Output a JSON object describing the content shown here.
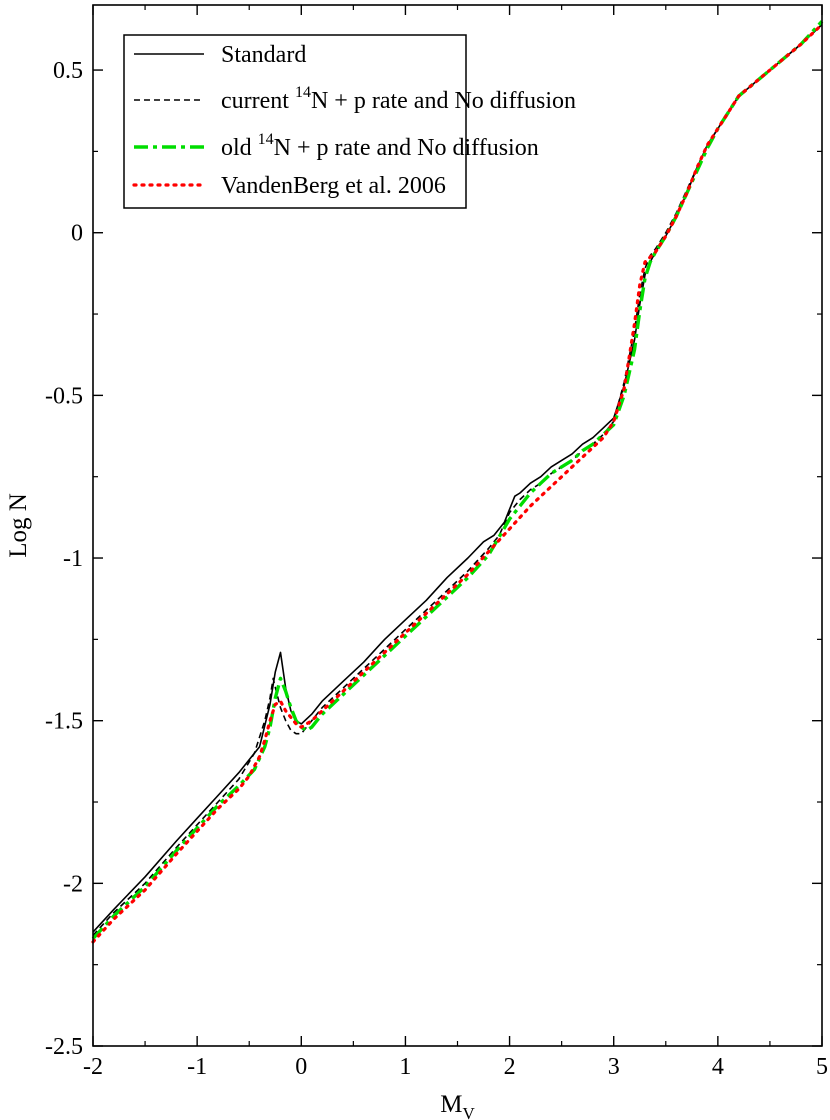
{
  "chart_data": {
    "type": "line",
    "xlabel": "M",
    "xlabel_sub": "V",
    "ylabel": "Log N",
    "xlim": [
      -2,
      5
    ],
    "ylim": [
      -2.5,
      0.7
    ],
    "xticks": [
      -2,
      -1,
      0,
      1,
      2,
      3,
      4,
      5
    ],
    "xtick_labels": [
      "-2",
      "-1",
      "0",
      "1",
      "2",
      "3",
      "4",
      "5"
    ],
    "yticks": [
      -2.5,
      -2,
      -1.5,
      -1,
      -0.5,
      0,
      0.5
    ],
    "ytick_labels": [
      "-2.5",
      "-2",
      "-1.5",
      "-1",
      "-0.5",
      "0",
      "0.5"
    ],
    "grid": false,
    "legend_position": "top-left",
    "series": [
      {
        "name": "Standard",
        "color": "#000000",
        "style": "solid",
        "x": [
          -2.0,
          -1.8,
          -1.5,
          -1.2,
          -1.0,
          -0.8,
          -0.6,
          -0.4,
          -0.3,
          -0.25,
          -0.2,
          -0.15,
          -0.1,
          -0.05,
          0.0,
          0.1,
          0.2,
          0.4,
          0.6,
          0.8,
          1.0,
          1.2,
          1.4,
          1.6,
          1.75,
          1.85,
          1.95,
          2.05,
          2.1,
          2.2,
          2.3,
          2.4,
          2.5,
          2.6,
          2.7,
          2.8,
          2.9,
          3.0,
          3.1,
          3.2,
          3.25,
          3.3,
          3.35,
          3.4,
          3.5,
          3.6,
          3.7,
          3.8,
          3.9,
          4.0,
          4.2,
          4.5,
          4.8,
          5.0
        ],
        "y": [
          -2.15,
          -2.08,
          -1.98,
          -1.87,
          -1.8,
          -1.73,
          -1.66,
          -1.58,
          -1.45,
          -1.35,
          -1.29,
          -1.4,
          -1.47,
          -1.5,
          -1.51,
          -1.48,
          -1.44,
          -1.38,
          -1.32,
          -1.25,
          -1.19,
          -1.13,
          -1.06,
          -1.0,
          -0.95,
          -0.93,
          -0.89,
          -0.81,
          -0.8,
          -0.77,
          -0.75,
          -0.72,
          -0.7,
          -0.68,
          -0.65,
          -0.63,
          -0.6,
          -0.57,
          -0.47,
          -0.33,
          -0.22,
          -0.13,
          -0.09,
          -0.06,
          -0.01,
          0.05,
          0.12,
          0.2,
          0.27,
          0.32,
          0.42,
          0.5,
          0.58,
          0.64
        ]
      },
      {
        "name": "current ¹⁴N + p rate and No diffusion",
        "color": "#000000",
        "style": "dashed",
        "x": [
          -2.0,
          -1.8,
          -1.5,
          -1.2,
          -1.0,
          -0.8,
          -0.6,
          -0.45,
          -0.35,
          -0.3,
          -0.27,
          -0.24,
          -0.2,
          -0.15,
          -0.1,
          -0.05,
          0.0,
          0.05,
          0.1,
          0.2,
          0.4,
          0.6,
          0.8,
          1.0,
          1.2,
          1.4,
          1.6,
          1.8,
          1.9,
          2.0,
          2.1,
          2.2,
          2.3,
          2.4,
          2.5,
          2.6,
          2.7,
          2.8,
          2.9,
          3.0,
          3.1,
          3.2,
          3.25,
          3.3,
          3.35,
          3.4,
          3.5,
          3.6,
          3.7,
          3.8,
          3.9,
          4.0,
          4.2,
          4.5,
          4.8,
          5.0
        ],
        "y": [
          -2.16,
          -2.09,
          -2.0,
          -1.89,
          -1.82,
          -1.75,
          -1.68,
          -1.6,
          -1.5,
          -1.43,
          -1.37,
          -1.41,
          -1.46,
          -1.5,
          -1.53,
          -1.54,
          -1.54,
          -1.52,
          -1.5,
          -1.46,
          -1.4,
          -1.34,
          -1.28,
          -1.22,
          -1.16,
          -1.1,
          -1.04,
          -0.97,
          -0.93,
          -0.86,
          -0.82,
          -0.79,
          -0.77,
          -0.74,
          -0.72,
          -0.7,
          -0.67,
          -0.65,
          -0.62,
          -0.58,
          -0.46,
          -0.3,
          -0.19,
          -0.11,
          -0.07,
          -0.05,
          0.0,
          0.06,
          0.13,
          0.2,
          0.27,
          0.32,
          0.42,
          0.5,
          0.58,
          0.64
        ]
      },
      {
        "name": "old ¹⁴N + p rate and No diffusion",
        "color": "#00dd00",
        "style": "dashdot",
        "x": [
          -2.0,
          -1.8,
          -1.5,
          -1.2,
          -1.0,
          -0.8,
          -0.6,
          -0.45,
          -0.35,
          -0.3,
          -0.25,
          -0.2,
          -0.15,
          -0.1,
          -0.05,
          0.0,
          0.05,
          0.1,
          0.2,
          0.4,
          0.6,
          0.8,
          1.0,
          1.2,
          1.4,
          1.6,
          1.8,
          2.0,
          2.1,
          2.2,
          2.3,
          2.4,
          2.5,
          2.6,
          2.7,
          2.8,
          2.9,
          3.0,
          3.1,
          3.2,
          3.25,
          3.3,
          3.35,
          3.4,
          3.5,
          3.6,
          3.7,
          3.8,
          3.9,
          4.0,
          4.2,
          4.5,
          4.8,
          5.0
        ],
        "y": [
          -2.17,
          -2.1,
          -2.01,
          -1.9,
          -1.83,
          -1.76,
          -1.7,
          -1.65,
          -1.58,
          -1.52,
          -1.43,
          -1.37,
          -1.41,
          -1.46,
          -1.5,
          -1.52,
          -1.53,
          -1.52,
          -1.48,
          -1.42,
          -1.36,
          -1.3,
          -1.24,
          -1.18,
          -1.12,
          -1.06,
          -0.99,
          -0.88,
          -0.84,
          -0.8,
          -0.77,
          -0.74,
          -0.72,
          -0.7,
          -0.67,
          -0.65,
          -0.62,
          -0.59,
          -0.5,
          -0.36,
          -0.24,
          -0.14,
          -0.09,
          -0.06,
          -0.01,
          0.05,
          0.12,
          0.19,
          0.26,
          0.32,
          0.42,
          0.5,
          0.58,
          0.65
        ]
      },
      {
        "name": "VandenBerg et al. 2006",
        "color": "#ff0000",
        "style": "dotted",
        "x": [
          -2.0,
          -1.8,
          -1.5,
          -1.2,
          -1.0,
          -0.8,
          -0.6,
          -0.5,
          -0.4,
          -0.35,
          -0.3,
          -0.25,
          -0.2,
          -0.15,
          -0.1,
          -0.05,
          0.0,
          0.1,
          0.2,
          0.4,
          0.6,
          0.8,
          1.0,
          1.2,
          1.4,
          1.6,
          1.8,
          2.0,
          2.2,
          2.4,
          2.6,
          2.8,
          2.9,
          3.0,
          3.1,
          3.2,
          3.25,
          3.3,
          3.4,
          3.5,
          3.6,
          3.7,
          3.8,
          3.9,
          4.0,
          4.2,
          4.5,
          4.8,
          5.0
        ],
        "y": [
          -2.18,
          -2.11,
          -2.02,
          -1.91,
          -1.84,
          -1.77,
          -1.71,
          -1.67,
          -1.61,
          -1.56,
          -1.5,
          -1.45,
          -1.44,
          -1.47,
          -1.49,
          -1.51,
          -1.52,
          -1.5,
          -1.47,
          -1.41,
          -1.35,
          -1.29,
          -1.23,
          -1.17,
          -1.11,
          -1.05,
          -0.98,
          -0.91,
          -0.84,
          -0.78,
          -0.72,
          -0.66,
          -0.63,
          -0.58,
          -0.48,
          -0.28,
          -0.16,
          -0.09,
          -0.06,
          -0.01,
          0.05,
          0.12,
          0.2,
          0.27,
          0.32,
          0.42,
          0.5,
          0.58,
          0.64
        ]
      }
    ],
    "legend": [
      {
        "prefix": "Standard",
        "sup": "",
        "suffix": ""
      },
      {
        "prefix": "current ",
        "sup": "14",
        "suffix": "N + p rate and No diffusion"
      },
      {
        "prefix": "old ",
        "sup": "14",
        "suffix": "N + p rate and No diffusion"
      },
      {
        "prefix": "VandenBerg et al. 2006",
        "sup": "",
        "suffix": ""
      }
    ]
  }
}
